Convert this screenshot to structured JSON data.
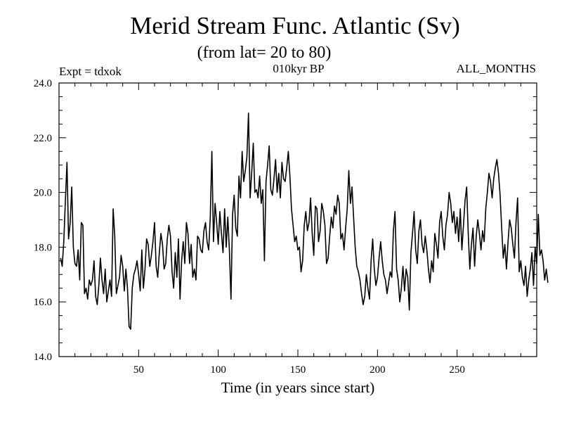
{
  "chart_data": {
    "type": "line",
    "title": "Merid Stream Func. Atlantic (Sv)",
    "subtitle": "(from lat= 20 to 80)",
    "annotations": {
      "left": "Expt = tdxok",
      "center": "010kyr BP",
      "right": "ALL_MONTHS"
    },
    "xlabel": "Time (in years since start)",
    "ylabel": "",
    "xlim": [
      0,
      300
    ],
    "ylim": [
      14.0,
      24.0
    ],
    "x_tick_labels": [
      "50",
      "100",
      "150",
      "200",
      "250"
    ],
    "y_tick_labels": [
      "14.0",
      "16.0",
      "18.0",
      "20.0",
      "22.0",
      "24.0"
    ],
    "grid": false,
    "x_start": 1,
    "x_step": 1,
    "series": [
      {
        "values": [
          17.6,
          17.3,
          18.2,
          19.7,
          21.1,
          18.3,
          18.9,
          20.2,
          18.0,
          17.4,
          17.3,
          17.9,
          16.8,
          18.9,
          18.8,
          16.3,
          16.5,
          16.1,
          16.8,
          16.6,
          16.8,
          17.5,
          16.2,
          15.9,
          16.6,
          17.6,
          16.8,
          16.3,
          17.2,
          16.0,
          16.4,
          16.8,
          16.2,
          19.4,
          18.4,
          16.3,
          16.6,
          16.9,
          17.7,
          17.3,
          16.4,
          17.2,
          16.5,
          15.1,
          15.0,
          16.5,
          17.0,
          17.2,
          17.5,
          17.0,
          16.4,
          17.9,
          16.5,
          17.2,
          18.3,
          18.1,
          17.3,
          17.7,
          18.2,
          18.9,
          17.3,
          16.9,
          17.8,
          18.5,
          18.1,
          17.2,
          17.4,
          18.3,
          18.8,
          18.4,
          17.1,
          16.5,
          17.8,
          16.9,
          18.3,
          16.1,
          17.5,
          18.2,
          17.4,
          18.9,
          18.5,
          17.4,
          18.1,
          16.9,
          17.2,
          16.8,
          18.4,
          18.3,
          17.9,
          17.8,
          18.6,
          18.9,
          18.2,
          17.9,
          19.1,
          21.5,
          18.2,
          19.6,
          18.9,
          18.1,
          19.3,
          18.5,
          17.8,
          19.4,
          18.0,
          19.1,
          17.9,
          16.1,
          19.2,
          19.9,
          18.7,
          18.4,
          20.6,
          19.8,
          21.5,
          20.4,
          20.8,
          21.3,
          22.9,
          19.8,
          20.7,
          21.8,
          20.0,
          20.1,
          19.8,
          20.6,
          19.6,
          20.1,
          17.5,
          20.4,
          21.0,
          21.7,
          20.1,
          19.9,
          20.5,
          21.2,
          20.0,
          20.7,
          19.8,
          21.1,
          20.5,
          20.4,
          20.9,
          21.5,
          20.6,
          19.4,
          18.8,
          18.2,
          18.4,
          17.9,
          18.0,
          17.1,
          17.5,
          18.8,
          19.3,
          18.6,
          18.9,
          19.8,
          18.5,
          17.7,
          19.5,
          19.4,
          18.2,
          18.6,
          19.6,
          19.3,
          18.8,
          17.4,
          17.6,
          18.4,
          19.1,
          18.7,
          19.5,
          19.2,
          19.9,
          19.6,
          18.3,
          18.5,
          17.9,
          18.7,
          19.4,
          20.8,
          19.6,
          20.2,
          19.1,
          18.0,
          17.3,
          17.1,
          16.8,
          16.3,
          15.9,
          16.2,
          17.0,
          16.5,
          16.1,
          17.5,
          18.3,
          17.2,
          16.6,
          16.9,
          17.6,
          18.2,
          17.5,
          17.0,
          16.8,
          16.3,
          16.7,
          17.1,
          16.9,
          18.6,
          19.3,
          17.2,
          16.8,
          16.0,
          16.5,
          17.3,
          16.4,
          17.2,
          16.9,
          15.7,
          17.8,
          18.5,
          19.3,
          17.9,
          17.4,
          18.6,
          19.0,
          18.1,
          17.8,
          18.4,
          17.9,
          17.2,
          16.7,
          17.5,
          17.1,
          18.5,
          18.1,
          17.6,
          18.9,
          19.3,
          18.4,
          17.9,
          18.8,
          19.2,
          20.0,
          19.6,
          18.9,
          19.3,
          18.5,
          19.1,
          18.2,
          19.4,
          17.9,
          18.8,
          19.7,
          20.2,
          18.5,
          17.2,
          18.1,
          18.7,
          17.3,
          18.4,
          19.0,
          18.5,
          17.9,
          18.6,
          18.2,
          19.4,
          20.0,
          20.7,
          20.4,
          19.8,
          20.5,
          20.9,
          21.2,
          20.7,
          19.9,
          18.7,
          17.6,
          18.1,
          17.2,
          18.2,
          19.0,
          18.7,
          18.1,
          17.6,
          18.9,
          19.8,
          17.1,
          17.5,
          16.9,
          16.6,
          17.3,
          16.2,
          16.8,
          17.2,
          17.8,
          16.6,
          18.0,
          17.4,
          19.2,
          17.7,
          17.9,
          17.5,
          16.8,
          17.2,
          16.7
        ]
      }
    ]
  }
}
